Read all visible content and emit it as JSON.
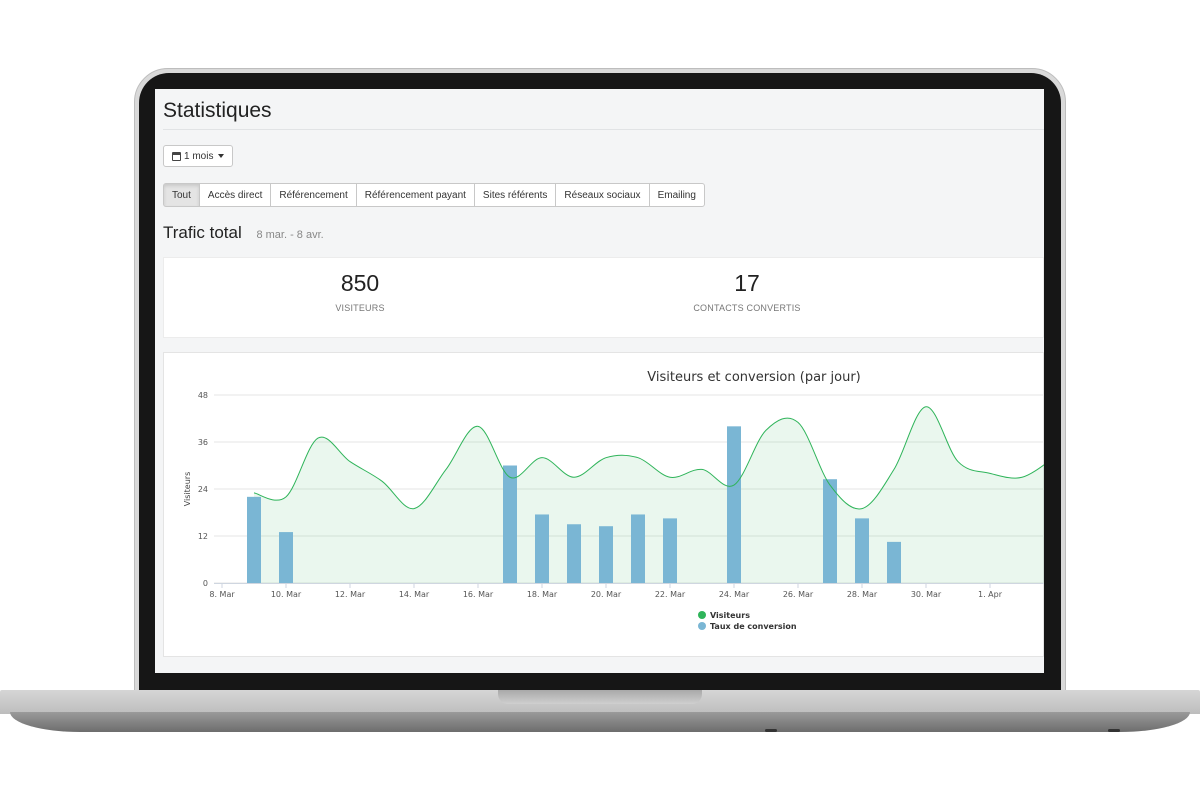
{
  "page": {
    "title": "Statistiques",
    "period_label": "1 mois",
    "period_icon": "calendar-icon"
  },
  "tabs": [
    {
      "label": "Tout",
      "active": true
    },
    {
      "label": "Accès direct",
      "active": false
    },
    {
      "label": "Référencement",
      "active": false
    },
    {
      "label": "Référencement payant",
      "active": false
    },
    {
      "label": "Sites référents",
      "active": false
    },
    {
      "label": "Réseaux sociaux",
      "active": false
    },
    {
      "label": "Emailing",
      "active": false
    }
  ],
  "traffic": {
    "title": "Trafic total",
    "date_range": "8 mar. - 8 avr."
  },
  "kpis": {
    "visitors": {
      "value": "850",
      "label": "VISITEURS"
    },
    "contacts": {
      "value": "17",
      "label": "CONTACTS CONVERTIS"
    }
  },
  "chart_data": {
    "type": "area",
    "title": "Visiteurs et conversion (par jour)",
    "ylabel": "Visiteurs",
    "xlabel": "",
    "ylim": [
      0,
      48
    ],
    "yticks": [
      0,
      12,
      24,
      36,
      48
    ],
    "x_tick_labels": [
      "8. Mar",
      "10. Mar",
      "12. Mar",
      "14. Mar",
      "16. Mar",
      "18. Mar",
      "20. Mar",
      "22. Mar",
      "24. Mar",
      "26. Mar",
      "28. Mar",
      "30. Mar",
      "1. Apr"
    ],
    "grid": true,
    "legend_position": "bottom-center",
    "series": [
      {
        "name": "Visiteurs",
        "kind": "spline-area",
        "color": "#2fb45a",
        "points": [
          {
            "x": "9. Mar",
            "y": 23
          },
          {
            "x": "10. Mar",
            "y": 22
          },
          {
            "x": "11. Mar",
            "y": 37
          },
          {
            "x": "12. Mar",
            "y": 31
          },
          {
            "x": "13. Mar",
            "y": 26
          },
          {
            "x": "14. Mar",
            "y": 19
          },
          {
            "x": "15. Mar",
            "y": 29
          },
          {
            "x": "16. Mar",
            "y": 40
          },
          {
            "x": "17. Mar",
            "y": 27
          },
          {
            "x": "18. Mar",
            "y": 32
          },
          {
            "x": "19. Mar",
            "y": 27
          },
          {
            "x": "20. Mar",
            "y": 32
          },
          {
            "x": "21. Mar",
            "y": 32
          },
          {
            "x": "22. Mar",
            "y": 27
          },
          {
            "x": "23. Mar",
            "y": 29
          },
          {
            "x": "24. Mar",
            "y": 25
          },
          {
            "x": "25. Mar",
            "y": 39
          },
          {
            "x": "26. Mar",
            "y": 41
          },
          {
            "x": "27. Mar",
            "y": 25
          },
          {
            "x": "28. Mar",
            "y": 19
          },
          {
            "x": "29. Mar",
            "y": 29
          },
          {
            "x": "30. Mar",
            "y": 45
          },
          {
            "x": "31. Mar",
            "y": 31
          },
          {
            "x": "1. Apr",
            "y": 28
          },
          {
            "x": "2. Apr",
            "y": 27
          },
          {
            "x": "3. Apr",
            "y": 32
          }
        ]
      },
      {
        "name": "Taux de conversion",
        "kind": "column",
        "color": "#7ab6d4",
        "points": [
          {
            "x": "9. Mar",
            "y": 22
          },
          {
            "x": "10. Mar",
            "y": 13
          },
          {
            "x": "17. Mar",
            "y": 30
          },
          {
            "x": "18. Mar",
            "y": 17.5
          },
          {
            "x": "19. Mar",
            "y": 15
          },
          {
            "x": "20. Mar",
            "y": 14.5
          },
          {
            "x": "21. Mar",
            "y": 17.5
          },
          {
            "x": "22. Mar",
            "y": 16.5
          },
          {
            "x": "24. Mar",
            "y": 40
          },
          {
            "x": "27. Mar",
            "y": 26.5
          },
          {
            "x": "28. Mar",
            "y": 16.5
          },
          {
            "x": "29. Mar",
            "y": 10.5
          }
        ]
      }
    ]
  }
}
